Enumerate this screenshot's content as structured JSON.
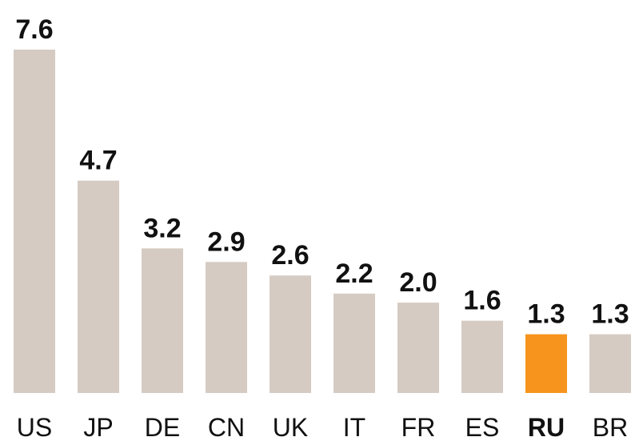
{
  "chart_data": {
    "type": "bar",
    "categories": [
      "US",
      "JP",
      "DE",
      "CN",
      "UK",
      "IT",
      "FR",
      "ES",
      "RU",
      "BR"
    ],
    "values": [
      7.6,
      4.7,
      3.2,
      2.9,
      2.6,
      2.2,
      2.0,
      1.6,
      1.3,
      1.3
    ],
    "value_labels": [
      "7.6",
      "4.7",
      "3.2",
      "2.9",
      "2.6",
      "2.2",
      "2.0",
      "1.6",
      "1.3",
      "1.3"
    ],
    "colors": [
      "#d5cbc3",
      "#d5cbc3",
      "#d5cbc3",
      "#d5cbc3",
      "#d5cbc3",
      "#d5cbc3",
      "#d5cbc3",
      "#d5cbc3",
      "#f7941d",
      "#d5cbc3"
    ],
    "ylim": [
      0,
      7.6
    ]
  }
}
